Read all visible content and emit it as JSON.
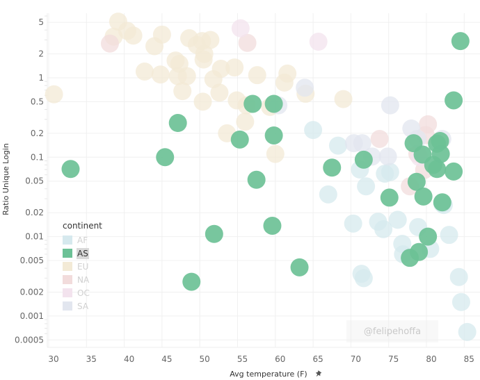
{
  "chart_data": {
    "type": "scatter",
    "title": "",
    "xlabel": "Avg temperature (F)",
    "ylabel": "Ratio Unique Login",
    "xlim": [
      29.8,
      86.6
    ],
    "ylim": [
      0.0004,
      8.5
    ],
    "yscale": "log",
    "grid": true,
    "x_ticks": [
      30,
      35,
      40,
      45,
      50,
      55,
      60,
      65,
      70,
      75,
      80,
      85
    ],
    "x_tick_labels": [
      "30",
      "35",
      "40",
      "45",
      "50",
      "55",
      "60",
      "65",
      "70",
      "75",
      "80",
      "85"
    ],
    "y_ticks": [
      5,
      2,
      1,
      0.5,
      0.2,
      0.1,
      0.05,
      0.02,
      0.01,
      0.005,
      0.002,
      0.001,
      0.0005
    ],
    "y_tick_labels": [
      "5",
      "2",
      "1",
      "0.5",
      "0.2",
      "0.1",
      "0.05",
      "0.02",
      "0.01",
      "0.005",
      "0.002",
      "0.001",
      "0.0005"
    ],
    "legend": {
      "title": "continent",
      "placement": "bottom-left",
      "highlighted": "AS"
    },
    "series": [
      {
        "name": "AF",
        "color": "#d6e9ee",
        "faded": true,
        "points": [
          [
            65.0,
            0.22
          ],
          [
            68.3,
            0.14
          ],
          [
            71.2,
            0.07
          ],
          [
            67.0,
            0.034
          ],
          [
            72.0,
            0.043
          ],
          [
            74.5,
            0.062
          ],
          [
            75.2,
            0.065
          ],
          [
            70.3,
            0.0146
          ],
          [
            73.6,
            0.0154
          ],
          [
            74.3,
            0.0124
          ],
          [
            76.2,
            0.0163
          ],
          [
            78.9,
            0.0132
          ],
          [
            83.0,
            0.0105
          ],
          [
            76.9,
            0.006
          ],
          [
            76.8,
            0.0081
          ],
          [
            80.5,
            0.007
          ],
          [
            71.4,
            0.0034
          ],
          [
            71.7,
            0.003
          ],
          [
            84.3,
            0.0031
          ],
          [
            84.6,
            0.0015
          ],
          [
            85.4,
            0.00063
          ],
          [
            82.1,
            0.026
          ],
          [
            82.3,
            0.025
          ]
        ]
      },
      {
        "name": "AS",
        "color": "#6cc196",
        "faded": false,
        "points": [
          [
            84.5,
            2.9
          ],
          [
            83.6,
            0.52
          ],
          [
            32.9,
            0.071
          ],
          [
            47.1,
            0.27
          ],
          [
            45.4,
            0.1
          ],
          [
            57.0,
            0.47
          ],
          [
            59.8,
            0.47
          ],
          [
            55.3,
            0.167
          ],
          [
            59.8,
            0.188
          ],
          [
            57.5,
            0.052
          ],
          [
            67.5,
            0.074
          ],
          [
            71.7,
            0.093
          ],
          [
            75.1,
            0.031
          ],
          [
            51.9,
            0.0108
          ],
          [
            59.6,
            0.0137
          ],
          [
            48.9,
            0.0027
          ],
          [
            63.2,
            0.0041
          ],
          [
            78.3,
            0.15
          ],
          [
            79.5,
            0.108
          ],
          [
            81.4,
            0.148
          ],
          [
            81.9,
            0.11
          ],
          [
            81.4,
            0.071
          ],
          [
            83.6,
            0.066
          ],
          [
            78.7,
            0.049
          ],
          [
            79.6,
            0.032
          ],
          [
            82.1,
            0.027
          ],
          [
            80.2,
            0.01
          ],
          [
            77.8,
            0.0054
          ],
          [
            79.0,
            0.0064
          ],
          [
            81.8,
            0.16
          ],
          [
            80.9,
            0.08
          ]
        ]
      },
      {
        "name": "EU",
        "color": "#f3ead6",
        "faded": true,
        "points": [
          [
            30.7,
            0.62
          ],
          [
            39.2,
            5.1
          ],
          [
            38.6,
            3.3
          ],
          [
            40.4,
            3.9
          ],
          [
            41.2,
            3.4
          ],
          [
            42.7,
            1.2
          ],
          [
            44.0,
            2.5
          ],
          [
            45.0,
            3.5
          ],
          [
            44.8,
            1.1
          ],
          [
            46.8,
            1.65
          ],
          [
            47.3,
            1.5
          ],
          [
            47.1,
            1.05
          ],
          [
            47.7,
            0.68
          ],
          [
            48.3,
            1.05
          ],
          [
            48.6,
            3.15
          ],
          [
            49.6,
            2.6
          ],
          [
            50.3,
            2.9
          ],
          [
            50.6,
            2.0
          ],
          [
            50.5,
            1.7
          ],
          [
            51.4,
            3.0
          ],
          [
            50.4,
            0.5
          ],
          [
            51.8,
            0.96
          ],
          [
            52.6,
            0.65
          ],
          [
            52.8,
            1.3
          ],
          [
            54.6,
            1.35
          ],
          [
            54.9,
            0.52
          ],
          [
            57.6,
            1.08
          ],
          [
            53.6,
            0.2
          ],
          [
            56.0,
            0.28
          ],
          [
            56.2,
            0.45
          ],
          [
            60.0,
            0.11
          ],
          [
            61.2,
            0.87
          ],
          [
            61.6,
            1.13
          ],
          [
            64.0,
            0.63
          ],
          [
            69.0,
            0.54
          ],
          [
            59.3,
            0.43
          ]
        ]
      },
      {
        "name": "NA",
        "color": "#f2dcdc",
        "faded": true,
        "points": [
          [
            38.1,
            2.7
          ],
          [
            56.3,
            2.75
          ],
          [
            73.8,
            0.17
          ],
          [
            80.2,
            0.26
          ],
          [
            79.9,
            0.19
          ],
          [
            79.7,
            0.069
          ],
          [
            77.8,
            0.043
          ],
          [
            78.8,
            0.11
          ]
        ]
      },
      {
        "name": "OC",
        "color": "#f3e3ee",
        "faded": true,
        "points": [
          [
            55.4,
            4.2
          ],
          [
            65.7,
            2.85
          ],
          [
            79.1,
            0.1
          ]
        ]
      },
      {
        "name": "SA",
        "color": "#e2e6ef",
        "faded": true,
        "points": [
          [
            63.9,
            0.75
          ],
          [
            60.4,
            0.45
          ],
          [
            75.2,
            0.45
          ],
          [
            70.4,
            0.15
          ],
          [
            71.5,
            0.15
          ],
          [
            72.8,
            0.102
          ],
          [
            74.9,
            0.102
          ],
          [
            78.0,
            0.23
          ],
          [
            82.1,
            0.17
          ],
          [
            78.8,
            0.17
          ]
        ]
      }
    ]
  },
  "axis": {
    "x_title": "Avg temperature (F)",
    "y_title": "Ratio Unique Login",
    "pin_icon": "pushpin-icon"
  },
  "legend": {
    "title": "continent",
    "items": [
      {
        "label": "AF",
        "color": "#d6e9ee"
      },
      {
        "label": "AS",
        "color": "#6cc196"
      },
      {
        "label": "EU",
        "color": "#f3ead6"
      },
      {
        "label": "NA",
        "color": "#f2dcdc"
      },
      {
        "label": "OC",
        "color": "#f3e3ee"
      },
      {
        "label": "SA",
        "color": "#e2e6ef"
      }
    ]
  },
  "watermark": "@felipehoffa"
}
